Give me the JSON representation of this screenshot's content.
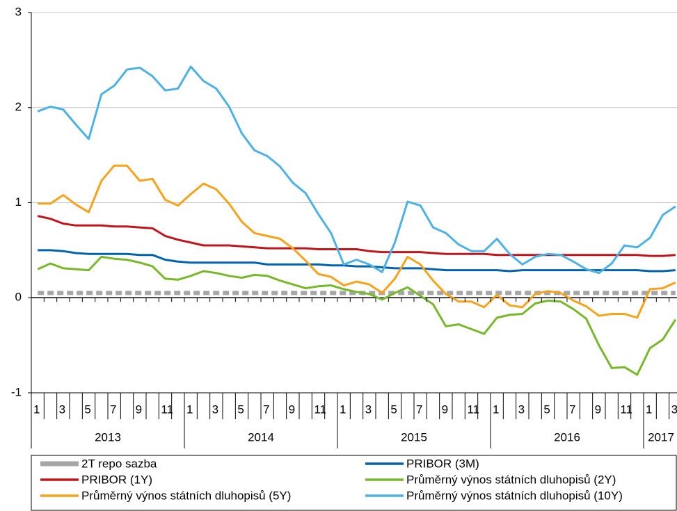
{
  "chart_data": {
    "type": "line",
    "categories": [
      "1",
      null,
      "3",
      null,
      "5",
      null,
      "7",
      null,
      "9",
      null,
      "11",
      null,
      "1",
      null,
      "3",
      null,
      "5",
      null,
      "7",
      null,
      "9",
      null,
      "11",
      null,
      "1",
      null,
      "3",
      null,
      "5",
      null,
      "7",
      null,
      "9",
      null,
      "11",
      null,
      "1",
      null,
      "3",
      null,
      "5",
      null,
      "7",
      null,
      "9",
      null,
      "11",
      null,
      "1",
      null,
      "3"
    ],
    "year_labels": [
      "2013",
      "2014",
      "2015",
      "2016",
      "2017"
    ],
    "ylim": [
      -1,
      3
    ],
    "yticks": [
      -1,
      0,
      1,
      2,
      3
    ],
    "grid": true,
    "series": [
      {
        "name": "2T repo sazba",
        "color": "#a6a6a6",
        "style": "dashed",
        "values": [
          0.05,
          0.05,
          0.05,
          0.05,
          0.05,
          0.05,
          0.05,
          0.05,
          0.05,
          0.05,
          0.05,
          0.05,
          0.05,
          0.05,
          0.05,
          0.05,
          0.05,
          0.05,
          0.05,
          0.05,
          0.05,
          0.05,
          0.05,
          0.05,
          0.05,
          0.05,
          0.05,
          0.05,
          0.05,
          0.05,
          0.05,
          0.05,
          0.05,
          0.05,
          0.05,
          0.05,
          0.05,
          0.05,
          0.05,
          0.05,
          0.05,
          0.05,
          0.05,
          0.05,
          0.05,
          0.05,
          0.05,
          0.05,
          0.05,
          0.05,
          0.05
        ]
      },
      {
        "name": "PRIBOR (3M)",
        "color": "#0063ac",
        "style": "solid",
        "values": [
          0.5,
          0.5,
          0.49,
          0.47,
          0.46,
          0.46,
          0.46,
          0.46,
          0.45,
          0.45,
          0.4,
          0.38,
          0.37,
          0.37,
          0.37,
          0.37,
          0.37,
          0.37,
          0.35,
          0.35,
          0.35,
          0.35,
          0.35,
          0.34,
          0.34,
          0.33,
          0.33,
          0.32,
          0.31,
          0.31,
          0.31,
          0.3,
          0.29,
          0.29,
          0.29,
          0.29,
          0.29,
          0.28,
          0.29,
          0.29,
          0.29,
          0.29,
          0.29,
          0.29,
          0.29,
          0.29,
          0.29,
          0.29,
          0.28,
          0.28,
          0.29
        ]
      },
      {
        "name": "PRIBOR (1Y)",
        "color": "#c0161b",
        "style": "solid",
        "values": [
          0.86,
          0.83,
          0.78,
          0.76,
          0.76,
          0.76,
          0.75,
          0.75,
          0.74,
          0.73,
          0.65,
          0.61,
          0.58,
          0.55,
          0.55,
          0.55,
          0.54,
          0.53,
          0.52,
          0.52,
          0.52,
          0.52,
          0.51,
          0.51,
          0.51,
          0.51,
          0.49,
          0.48,
          0.48,
          0.48,
          0.48,
          0.47,
          0.46,
          0.46,
          0.46,
          0.46,
          0.45,
          0.45,
          0.45,
          0.45,
          0.45,
          0.45,
          0.45,
          0.45,
          0.45,
          0.45,
          0.45,
          0.45,
          0.44,
          0.44,
          0.45
        ]
      },
      {
        "name": "Průměrný výnos státních dluhopisů (2Y)",
        "color": "#77b82a",
        "style": "solid",
        "values": [
          0.3,
          0.36,
          0.31,
          0.3,
          0.29,
          0.43,
          0.41,
          0.4,
          0.37,
          0.33,
          0.2,
          0.19,
          0.23,
          0.28,
          0.26,
          0.23,
          0.21,
          0.24,
          0.23,
          0.18,
          0.14,
          0.1,
          0.12,
          0.13,
          0.09,
          0.06,
          0.04,
          -0.02,
          0.05,
          0.11,
          0.02,
          -0.07,
          -0.3,
          -0.28,
          -0.33,
          -0.38,
          -0.21,
          -0.18,
          -0.17,
          -0.06,
          -0.03,
          -0.04,
          -0.12,
          -0.22,
          -0.5,
          -0.74,
          -0.73,
          -0.81,
          -0.53,
          -0.44,
          -0.23
        ]
      },
      {
        "name": "Průměrný výnos státních dluhopisů (5Y)",
        "color": "#f7a21b",
        "style": "solid",
        "values": [
          0.99,
          0.99,
          1.08,
          0.98,
          0.9,
          1.23,
          1.39,
          1.39,
          1.23,
          1.25,
          1.03,
          0.97,
          1.09,
          1.2,
          1.14,
          0.99,
          0.8,
          0.68,
          0.65,
          0.62,
          0.52,
          0.39,
          0.25,
          0.22,
          0.13,
          0.17,
          0.14,
          0.05,
          0.2,
          0.43,
          0.35,
          0.18,
          0.04,
          -0.04,
          -0.04,
          -0.1,
          0.03,
          -0.08,
          -0.1,
          0.04,
          0.07,
          0.05,
          -0.03,
          -0.09,
          -0.19,
          -0.17,
          -0.17,
          -0.21,
          0.09,
          0.1,
          0.16
        ]
      },
      {
        "name": "Průměrný výnos státních dluhopisů (10Y)",
        "color": "#4cb1e5",
        "style": "solid",
        "values": [
          1.96,
          2.01,
          1.98,
          1.82,
          1.67,
          2.14,
          2.23,
          2.4,
          2.42,
          2.33,
          2.18,
          2.2,
          2.43,
          2.28,
          2.2,
          2.01,
          1.73,
          1.55,
          1.49,
          1.38,
          1.21,
          1.1,
          0.88,
          0.68,
          0.35,
          0.4,
          0.35,
          0.27,
          0.58,
          1.01,
          0.97,
          0.74,
          0.68,
          0.56,
          0.49,
          0.49,
          0.62,
          0.46,
          0.35,
          0.43,
          0.46,
          0.45,
          0.38,
          0.3,
          0.26,
          0.36,
          0.55,
          0.53,
          0.63,
          0.87,
          0.96
        ]
      }
    ]
  }
}
